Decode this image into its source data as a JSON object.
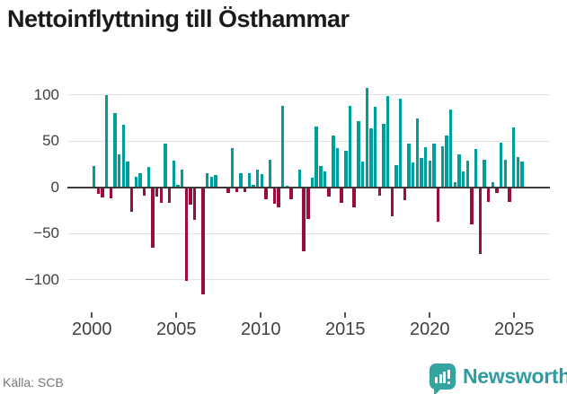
{
  "title": "Nettoinflyttning till Östhammar",
  "footer": {
    "source_label": "Källa: SCB",
    "brand_name": "Newsworthy",
    "brand_icon": "speech-bubble-bar-chart-icon"
  },
  "colors": {
    "positive_bar": "#009e9a",
    "negative_bar": "#9b0d3f",
    "gridline": "#e2e2e2",
    "zero_line": "#3a3a3a",
    "axis_text": "#3f3f3f",
    "title_text": "#1a1a1a",
    "source_text": "#767676",
    "brand_teal": "#2e9ca0"
  },
  "chart_data": {
    "type": "bar",
    "title": "Nettoinflyttning till Östhammar",
    "xlabel": "",
    "ylabel": "",
    "grid": true,
    "legend": false,
    "ylim": [
      -133,
      111
    ],
    "y_ticks": [
      100,
      50,
      0,
      -50,
      -100
    ],
    "x_tick_years": [
      "2000",
      "2005",
      "2010",
      "2015",
      "2020",
      "2025"
    ],
    "frequency": "quarterly",
    "x": [
      "2000Q1",
      "2000Q2",
      "2000Q3",
      "2000Q4",
      "2001Q1",
      "2001Q2",
      "2001Q3",
      "2001Q4",
      "2002Q1",
      "2002Q2",
      "2002Q3",
      "2002Q4",
      "2003Q1",
      "2003Q2",
      "2003Q3",
      "2003Q4",
      "2004Q1",
      "2004Q2",
      "2004Q3",
      "2004Q4",
      "2005Q1",
      "2005Q2",
      "2005Q3",
      "2005Q4",
      "2006Q1",
      "2006Q2",
      "2006Q3",
      "2006Q4",
      "2007Q1",
      "2007Q2",
      "2007Q3",
      "2007Q4",
      "2008Q1",
      "2008Q2",
      "2008Q3",
      "2008Q4",
      "2009Q1",
      "2009Q2",
      "2009Q3",
      "2009Q4",
      "2010Q1",
      "2010Q2",
      "2010Q3",
      "2010Q4",
      "2011Q1",
      "2011Q2",
      "2011Q3",
      "2011Q4",
      "2012Q1",
      "2012Q2",
      "2012Q3",
      "2012Q4",
      "2013Q1",
      "2013Q2",
      "2013Q3",
      "2013Q4",
      "2014Q1",
      "2014Q2",
      "2014Q3",
      "2014Q4",
      "2015Q1",
      "2015Q2",
      "2015Q3",
      "2015Q4",
      "2016Q1",
      "2016Q2",
      "2016Q3",
      "2016Q4",
      "2017Q1",
      "2017Q2",
      "2017Q3",
      "2017Q4",
      "2018Q1",
      "2018Q2",
      "2018Q3",
      "2018Q4",
      "2019Q1",
      "2019Q2",
      "2019Q3",
      "2019Q4",
      "2020Q1",
      "2020Q2",
      "2020Q3",
      "2020Q4",
      "2021Q1",
      "2021Q2",
      "2021Q3",
      "2021Q4",
      "2022Q1",
      "2022Q2",
      "2022Q3",
      "2022Q4",
      "2023Q1",
      "2023Q2",
      "2023Q3",
      "2023Q4",
      "2024Q1",
      "2024Q2",
      "2024Q3",
      "2024Q4",
      "2025Q1",
      "2025Q2",
      "2025Q3"
    ],
    "values": [
      23,
      -6,
      -10,
      100,
      -11,
      80,
      36,
      68,
      28,
      -26,
      11,
      15,
      -8,
      22,
      -64,
      -9,
      -16,
      47,
      -16,
      29,
      3,
      19,
      -100,
      -18,
      -34,
      0,
      -115,
      15,
      11,
      13,
      0,
      0,
      -5,
      42,
      -4,
      15,
      -4,
      15,
      3,
      19,
      14,
      -12,
      30,
      -17,
      -21,
      88,
      2,
      -12,
      0,
      19,
      -68,
      -33,
      10,
      66,
      23,
      17,
      -9,
      56,
      42,
      -16,
      40,
      88,
      -21,
      72,
      28,
      107,
      64,
      87,
      -8,
      69,
      99,
      -30,
      24,
      96,
      -13,
      47,
      27,
      74,
      32,
      43,
      29,
      47,
      -36,
      44,
      56,
      84,
      6,
      36,
      17,
      29,
      -39,
      41,
      -71,
      30,
      -15,
      6,
      -5,
      48,
      30,
      -15,
      65,
      33,
      28
    ]
  }
}
